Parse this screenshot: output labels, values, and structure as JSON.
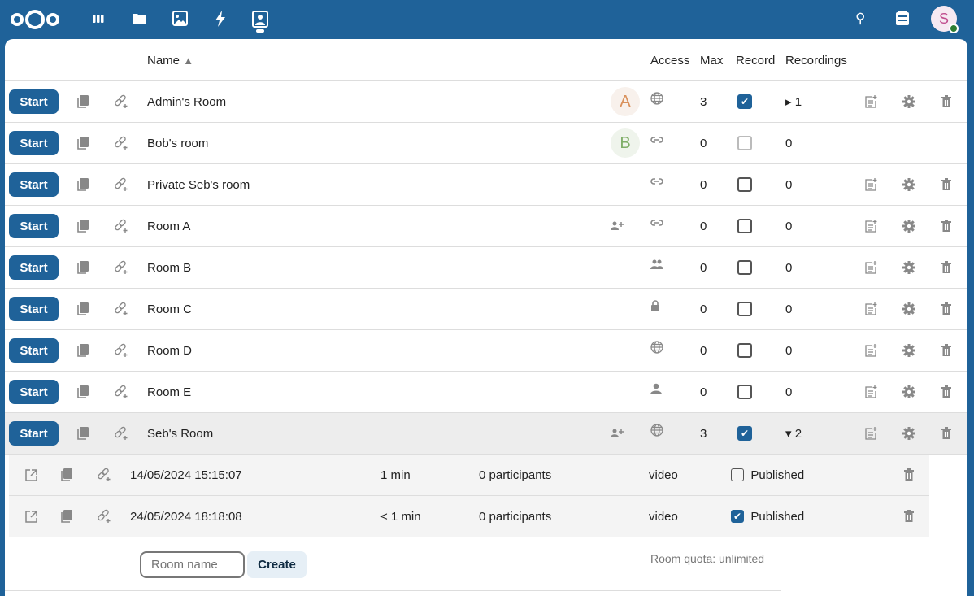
{
  "topbar": {
    "apps": [
      "dashboard-icon",
      "files-icon",
      "photos-icon",
      "activity-icon",
      "bbb-icon"
    ],
    "avatar_letter": "S"
  },
  "table": {
    "headers": {
      "name": "Name",
      "sort": "▲",
      "access": "Access",
      "max": "Max",
      "record": "Record",
      "recordings": "Recordings"
    },
    "start_label": "Start",
    "rows": [
      {
        "name": "Admin's Room",
        "avatar": "A",
        "avatar_color": "#d9915c",
        "avatar_bg": "#f8f1ec",
        "access": "globe",
        "max": "3",
        "record": true,
        "recordings": "▸ 1",
        "actions": true
      },
      {
        "name": "Bob's room",
        "avatar": "B",
        "avatar_color": "#7fae68",
        "avatar_bg": "#eff4ec",
        "access": "link",
        "max": "0",
        "record": false,
        "record_disabled": true,
        "recordings": "0",
        "actions": false
      },
      {
        "name": "Private Seb's room",
        "access": "link",
        "max": "0",
        "record": false,
        "recordings": "0",
        "actions": true
      },
      {
        "name": "Room A",
        "shared": true,
        "access": "link",
        "max": "0",
        "record": false,
        "recordings": "0",
        "actions": true
      },
      {
        "name": "Room B",
        "access": "group",
        "max": "0",
        "record": false,
        "recordings": "0",
        "actions": true
      },
      {
        "name": "Room C",
        "access": "lock",
        "max": "0",
        "record": false,
        "recordings": "0",
        "actions": true
      },
      {
        "name": "Room D",
        "access": "globe",
        "max": "0",
        "record": false,
        "recordings": "0",
        "actions": true
      },
      {
        "name": "Room E",
        "access": "person",
        "max": "0",
        "record": false,
        "recordings": "0",
        "actions": true
      },
      {
        "name": "Seb's Room",
        "shared": true,
        "access": "globe",
        "max": "3",
        "record": true,
        "recordings": "▾ 2",
        "actions": true,
        "highlight": true
      }
    ],
    "recordings": [
      {
        "date": "14/05/2024 15:15:07",
        "duration": "1 min",
        "participants": "0 participants",
        "type": "video",
        "published": false,
        "published_label": "Published"
      },
      {
        "date": "24/05/2024 18:18:08",
        "duration": "< 1 min",
        "participants": "0 participants",
        "type": "video",
        "published": true,
        "published_label": "Published"
      }
    ]
  },
  "footer": {
    "room_name_placeholder": "Room name",
    "create_label": "Create",
    "quota": "Room quota: unlimited"
  },
  "colors": {
    "brand": "#1f6299"
  }
}
